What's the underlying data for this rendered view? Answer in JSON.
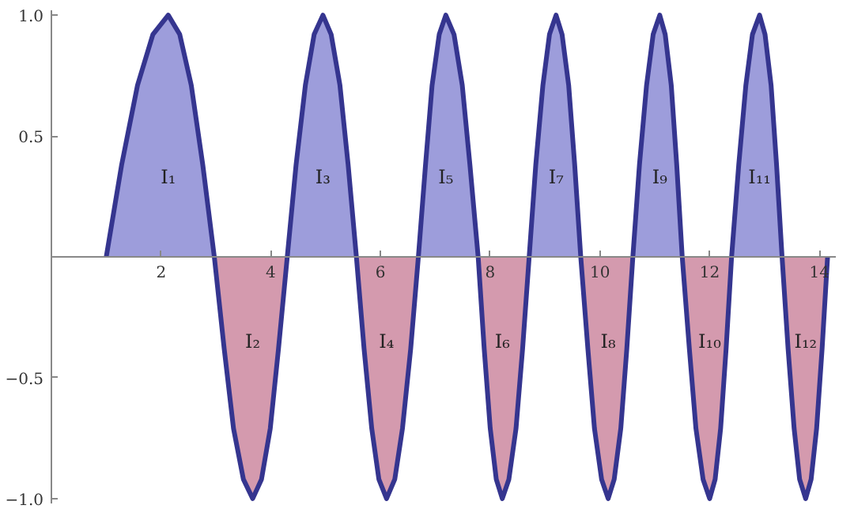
{
  "chart_data": {
    "type": "area",
    "x": [
      1.0,
      1.28,
      1.57,
      1.85,
      2.13,
      2.34,
      2.55,
      2.76,
      2.97,
      3.15,
      3.32,
      3.5,
      3.67,
      3.83,
      3.99,
      4.14,
      4.3,
      4.46,
      4.63,
      4.79,
      4.95,
      5.1,
      5.26,
      5.41,
      5.56,
      5.7,
      5.84,
      5.97,
      6.11,
      6.26,
      6.4,
      6.55,
      6.69,
      6.82,
      6.94,
      7.07,
      7.19,
      7.34,
      7.49,
      7.63,
      7.78,
      7.89,
      8.0,
      8.11,
      8.22,
      8.34,
      8.47,
      8.59,
      8.71,
      8.83,
      8.96,
      9.08,
      9.2,
      9.31,
      9.43,
      9.54,
      9.65,
      9.78,
      9.9,
      10.03,
      10.15,
      10.26,
      10.38,
      10.49,
      10.6,
      10.72,
      10.85,
      10.97,
      11.09,
      11.19,
      11.3,
      11.4,
      11.5,
      11.63,
      11.75,
      11.88,
      12.0,
      12.1,
      12.2,
      12.3,
      12.4,
      12.53,
      12.66,
      12.78,
      12.91,
      13.01,
      13.12,
      13.22,
      13.32,
      13.43,
      13.54,
      13.64,
      13.75,
      13.85,
      13.95,
      14.05,
      14.15
    ],
    "series": [
      {
        "color": "#9d9ddb",
        "values": [
          0,
          0.38,
          0.71,
          0.92,
          1,
          0.92,
          0.71,
          0.38,
          0,
          null,
          null,
          null,
          null,
          null,
          null,
          null,
          0,
          0.38,
          0.71,
          0.92,
          1,
          0.92,
          0.71,
          0.38,
          0,
          null,
          null,
          null,
          null,
          null,
          null,
          null,
          0,
          0.38,
          0.71,
          0.92,
          1,
          0.92,
          0.71,
          0.38,
          0,
          null,
          null,
          null,
          null,
          null,
          null,
          null,
          0,
          0.38,
          0.71,
          0.92,
          1,
          0.92,
          0.71,
          0.38,
          0,
          null,
          null,
          null,
          null,
          null,
          null,
          null,
          0,
          0.38,
          0.71,
          0.92,
          1,
          0.92,
          0.71,
          0.38,
          0,
          null,
          null,
          null,
          null,
          null,
          null,
          null,
          0,
          0.38,
          0.71,
          0.92,
          1,
          0.92,
          0.71,
          0.38,
          0,
          null,
          null,
          null,
          null,
          null,
          null,
          null,
          null
        ]
      },
      {
        "color": "#d49aae",
        "values": [
          null,
          null,
          null,
          null,
          null,
          null,
          null,
          null,
          0,
          -0.38,
          -0.71,
          -0.92,
          -1,
          -0.92,
          -0.71,
          -0.38,
          0,
          null,
          null,
          null,
          null,
          null,
          null,
          null,
          0,
          -0.38,
          -0.71,
          -0.92,
          -1,
          -0.92,
          -0.71,
          -0.38,
          0,
          null,
          null,
          null,
          null,
          null,
          null,
          null,
          0,
          -0.38,
          -0.71,
          -0.92,
          -1,
          -0.92,
          -0.71,
          -0.38,
          0,
          null,
          null,
          null,
          null,
          null,
          null,
          null,
          0,
          -0.38,
          -0.71,
          -0.92,
          -1,
          -0.92,
          -0.71,
          -0.38,
          0,
          null,
          null,
          null,
          null,
          null,
          null,
          null,
          0,
          -0.38,
          -0.71,
          -0.92,
          -1,
          -0.92,
          -0.71,
          -0.38,
          0,
          null,
          null,
          null,
          null,
          null,
          null,
          null,
          0,
          -0.38,
          -0.71,
          -0.92,
          -1,
          -0.92,
          -0.71,
          -0.38,
          0
        ]
      },
      {
        "type": "line",
        "color": "#35358f",
        "values": [
          0,
          0.38,
          0.71,
          0.92,
          1,
          0.92,
          0.71,
          0.38,
          0,
          -0.38,
          -0.71,
          -0.92,
          -1,
          -0.92,
          -0.71,
          -0.38,
          0,
          0.38,
          0.71,
          0.92,
          1,
          0.92,
          0.71,
          0.38,
          0,
          -0.38,
          -0.71,
          -0.92,
          -1,
          -0.92,
          -0.71,
          -0.38,
          0,
          0.38,
          0.71,
          0.92,
          1,
          0.92,
          0.71,
          0.38,
          0,
          -0.38,
          -0.71,
          -0.92,
          -1,
          -0.92,
          -0.71,
          -0.38,
          0,
          0.38,
          0.71,
          0.92,
          1,
          0.92,
          0.71,
          0.38,
          0,
          -0.38,
          -0.71,
          -0.92,
          -1,
          -0.92,
          -0.71,
          -0.38,
          0,
          0.38,
          0.71,
          0.92,
          1,
          0.92,
          0.71,
          0.38,
          0,
          -0.38,
          -0.71,
          -0.92,
          -1,
          -0.92,
          -0.71,
          -0.38,
          0,
          0.38,
          0.71,
          0.92,
          1,
          0.92,
          0.71,
          0.38,
          0,
          -0.38,
          -0.71,
          -0.92,
          -1,
          -0.92,
          -0.71,
          -0.38,
          0
        ]
      }
    ],
    "xlim": [
      0,
      14.3
    ],
    "ylim": [
      -1.02,
      1.02
    ],
    "xticks": [
      2,
      4,
      6,
      8,
      10,
      12,
      14
    ],
    "yticks": [
      {
        "value": -1,
        "label": "−1.0"
      },
      {
        "value": -0.5,
        "label": "−0.5"
      },
      {
        "value": 0.5,
        "label": "0.5"
      },
      {
        "value": 1,
        "label": "1.0"
      }
    ],
    "grid": false,
    "annotations": [
      "I₁",
      "I₂",
      "I₃",
      "I₄",
      "I₅",
      "I₆",
      "I₇",
      "I₈",
      "I₉",
      "I₁₀",
      "I₁₁",
      "I₁₂"
    ]
  }
}
